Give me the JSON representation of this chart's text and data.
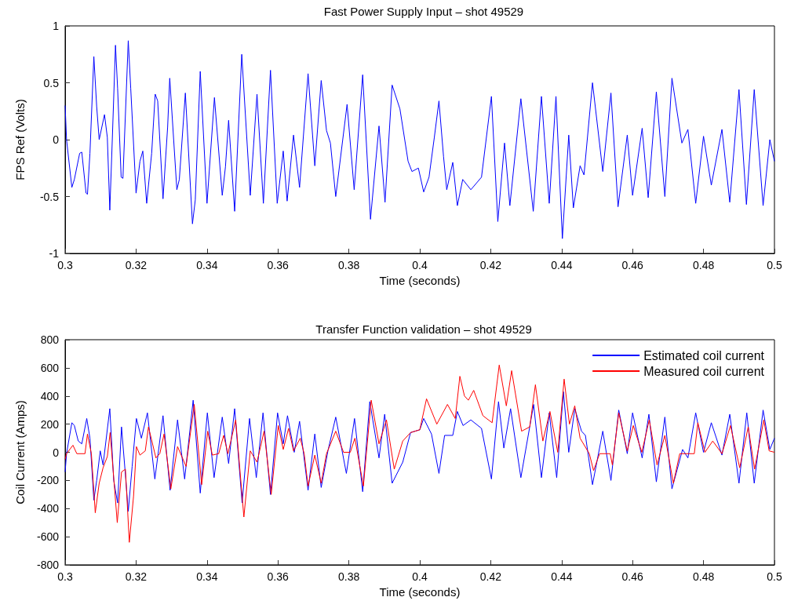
{
  "chart_data": [
    {
      "type": "line",
      "title": "Fast Power Supply Input – shot 49529",
      "xlabel": "Time (seconds)",
      "ylabel": "FPS Ref (Volts)",
      "xlim": [
        0.3,
        0.5
      ],
      "xticks": [
        0.3,
        0.32,
        0.34,
        0.36,
        0.38,
        0.4,
        0.42,
        0.44,
        0.46,
        0.48,
        0.5
      ],
      "ylim": [
        -1,
        1
      ],
      "yticks": [
        -1,
        -0.5,
        0,
        0.5,
        1
      ],
      "grid": false,
      "marker": "none",
      "line_style": "solid",
      "series": [
        {
          "color": "#0000ff",
          "x": [
            0.3,
            0.3004,
            0.3019,
            0.3026,
            0.3041,
            0.3047,
            0.3059,
            0.3063,
            0.307,
            0.3081,
            0.3089,
            0.3096,
            0.3111,
            0.3119,
            0.3126,
            0.3133,
            0.3142,
            0.3148,
            0.3158,
            0.3163,
            0.3178,
            0.3185,
            0.32,
            0.3211,
            0.3219,
            0.323,
            0.3244,
            0.3254,
            0.3261,
            0.3276,
            0.3289,
            0.3295,
            0.3315,
            0.3322,
            0.3339,
            0.3359,
            0.3367,
            0.3381,
            0.34,
            0.3421,
            0.3443,
            0.3452,
            0.3461,
            0.3478,
            0.3498,
            0.3522,
            0.3541,
            0.3559,
            0.3579,
            0.3598,
            0.3615,
            0.3626,
            0.3644,
            0.3661,
            0.3685,
            0.3704,
            0.3722,
            0.3737,
            0.3748,
            0.3763,
            0.3795,
            0.3815,
            0.3839,
            0.3861,
            0.3885,
            0.3902,
            0.3922,
            0.3944,
            0.3967,
            0.3978,
            0.3996,
            0.4011,
            0.4026,
            0.4041,
            0.4054,
            0.4067,
            0.4076,
            0.4093,
            0.4106,
            0.4121,
            0.4144,
            0.4174,
            0.4202,
            0.422,
            0.4239,
            0.4254,
            0.4285,
            0.432,
            0.4343,
            0.4365,
            0.4384,
            0.4402,
            0.442,
            0.4433,
            0.4452,
            0.4463,
            0.4487,
            0.4516,
            0.4539,
            0.4559,
            0.4585,
            0.46,
            0.4627,
            0.4644,
            0.4667,
            0.4691,
            0.4711,
            0.4739,
            0.4756,
            0.4778,
            0.48,
            0.4822,
            0.4852,
            0.4874,
            0.49,
            0.4921,
            0.4943,
            0.4968,
            0.4987,
            0.5
          ],
          "values": [
            0.3,
            0.0,
            -0.42,
            -0.35,
            -0.12,
            -0.11,
            -0.47,
            -0.48,
            -0.12,
            0.73,
            0.29,
            0.0,
            0.22,
            0.02,
            -0.62,
            0.0,
            0.83,
            0.45,
            -0.33,
            -0.34,
            0.87,
            0.45,
            -0.47,
            -0.19,
            -0.1,
            -0.56,
            -0.12,
            0.4,
            0.34,
            -0.52,
            0.11,
            0.54,
            -0.44,
            -0.35,
            0.41,
            -0.74,
            -0.53,
            0.6,
            -0.56,
            0.37,
            -0.49,
            -0.24,
            0.17,
            -0.63,
            0.75,
            -0.49,
            0.4,
            -0.56,
            0.61,
            -0.56,
            -0.1,
            -0.54,
            0.04,
            -0.42,
            0.58,
            -0.23,
            0.52,
            0.08,
            -0.03,
            -0.5,
            0.31,
            -0.44,
            0.57,
            -0.7,
            0.12,
            -0.55,
            0.48,
            0.27,
            -0.19,
            -0.28,
            -0.25,
            -0.46,
            -0.33,
            0.02,
            0.34,
            -0.15,
            -0.44,
            -0.2,
            -0.58,
            -0.35,
            -0.44,
            -0.33,
            0.38,
            -0.72,
            -0.03,
            -0.58,
            0.36,
            -0.63,
            0.38,
            -0.56,
            0.38,
            -0.87,
            0.04,
            -0.6,
            -0.23,
            -0.31,
            0.5,
            -0.28,
            0.41,
            -0.59,
            0.04,
            -0.49,
            0.1,
            -0.51,
            0.42,
            -0.5,
            0.54,
            -0.03,
            0.09,
            -0.56,
            0.03,
            -0.4,
            0.09,
            -0.55,
            0.44,
            -0.57,
            0.44,
            -0.58,
            0.0,
            -0.19
          ]
        }
      ]
    },
    {
      "type": "line",
      "title": "Transfer Function validation – shot 49529",
      "xlabel": "Time (seconds)",
      "ylabel": "Coil Current (Amps)",
      "xlim": [
        0.3,
        0.5
      ],
      "xticks": [
        0.3,
        0.32,
        0.34,
        0.36,
        0.38,
        0.4,
        0.42,
        0.44,
        0.46,
        0.48,
        0.5
      ],
      "ylim": [
        -800,
        800
      ],
      "yticks": [
        -800,
        -600,
        -400,
        -200,
        0,
        200,
        400,
        600,
        800
      ],
      "grid": false,
      "legend": "top right",
      "marker": "none",
      "line_style": "solid",
      "series": [
        {
          "name": "Estimated coil current",
          "color": "#0000ff",
          "x": [
            0.3,
            0.3004,
            0.3019,
            0.3026,
            0.3037,
            0.3047,
            0.3061,
            0.307,
            0.3081,
            0.3089,
            0.3099,
            0.3107,
            0.3126,
            0.3137,
            0.3148,
            0.3159,
            0.317,
            0.3178,
            0.3189,
            0.3201,
            0.3215,
            0.3232,
            0.3253,
            0.3276,
            0.3296,
            0.3317,
            0.3337,
            0.3361,
            0.3381,
            0.3401,
            0.342,
            0.3443,
            0.3461,
            0.3478,
            0.3499,
            0.352,
            0.3539,
            0.3558,
            0.3579,
            0.3599,
            0.3615,
            0.3627,
            0.3646,
            0.3661,
            0.3685,
            0.3704,
            0.3722,
            0.3741,
            0.3763,
            0.3793,
            0.3816,
            0.3839,
            0.3859,
            0.3885,
            0.3901,
            0.3922,
            0.3952,
            0.3974,
            0.4,
            0.4011,
            0.4033,
            0.4054,
            0.407,
            0.4093,
            0.4106,
            0.4122,
            0.4144,
            0.4174,
            0.4202,
            0.4222,
            0.4237,
            0.4256,
            0.4285,
            0.4321,
            0.4343,
            0.4365,
            0.4386,
            0.4405,
            0.442,
            0.4437,
            0.4456,
            0.4467,
            0.4487,
            0.4516,
            0.4539,
            0.4561,
            0.4585,
            0.46,
            0.4627,
            0.4646,
            0.4667,
            0.4691,
            0.4711,
            0.4741,
            0.4756,
            0.4778,
            0.48,
            0.4822,
            0.4852,
            0.4874,
            0.49,
            0.4922,
            0.4943,
            0.4968,
            0.4987,
            0.5
          ],
          "values": [
            -140,
            -10,
            210,
            190,
            80,
            60,
            240,
            100,
            -340,
            -200,
            10,
            -90,
            310,
            -200,
            -360,
            180,
            -160,
            -420,
            -100,
            240,
            100,
            280,
            -190,
            260,
            -270,
            230,
            -190,
            370,
            -290,
            280,
            -180,
            250,
            -80,
            310,
            -360,
            240,
            -180,
            280,
            -300,
            280,
            60,
            260,
            0,
            220,
            -270,
            130,
            -250,
            10,
            250,
            -150,
            240,
            -280,
            360,
            -40,
            270,
            -220,
            -70,
            140,
            160,
            240,
            130,
            -150,
            120,
            120,
            290,
            190,
            230,
            170,
            -190,
            360,
            30,
            310,
            -180,
            340,
            -180,
            280,
            -180,
            430,
            0,
            310,
            150,
            120,
            -230,
            150,
            -200,
            300,
            -10,
            280,
            -40,
            270,
            -210,
            250,
            -260,
            20,
            -40,
            280,
            0,
            210,
            -20,
            270,
            -220,
            280,
            -220,
            300,
            20,
            100
          ]
        },
        {
          "name": "Measured coil current",
          "color": "#ff0000",
          "x": [
            0.3,
            0.3004,
            0.3022,
            0.3033,
            0.3056,
            0.3063,
            0.3074,
            0.3085,
            0.3096,
            0.3107,
            0.3119,
            0.3127,
            0.3147,
            0.3159,
            0.317,
            0.3181,
            0.3193,
            0.3201,
            0.3211,
            0.3226,
            0.3235,
            0.3256,
            0.3267,
            0.3279,
            0.3298,
            0.3317,
            0.3341,
            0.3364,
            0.3385,
            0.3402,
            0.3415,
            0.3433,
            0.3447,
            0.3459,
            0.3481,
            0.3504,
            0.3522,
            0.3541,
            0.3561,
            0.3581,
            0.3601,
            0.3615,
            0.363,
            0.3644,
            0.3663,
            0.3674,
            0.3685,
            0.3704,
            0.3722,
            0.3737,
            0.3763,
            0.3785,
            0.3804,
            0.3817,
            0.3841,
            0.3863,
            0.3885,
            0.3906,
            0.3928,
            0.3952,
            0.3974,
            0.4,
            0.4019,
            0.4048,
            0.4078,
            0.41,
            0.4113,
            0.4126,
            0.4137,
            0.4152,
            0.4178,
            0.4204,
            0.4224,
            0.4244,
            0.4259,
            0.4287,
            0.431,
            0.4326,
            0.4347,
            0.4367,
            0.4389,
            0.4407,
            0.4422,
            0.4437,
            0.4452,
            0.4478,
            0.449,
            0.4507,
            0.4537,
            0.4543,
            0.4561,
            0.4585,
            0.4602,
            0.4626,
            0.4647,
            0.4669,
            0.4691,
            0.4715,
            0.4733,
            0.4774,
            0.4784,
            0.4804,
            0.4826,
            0.4852,
            0.4876,
            0.4902,
            0.4926,
            0.4944,
            0.497,
            0.4985,
            0.5
          ],
          "values": [
            -50,
            -10,
            50,
            -10,
            -10,
            130,
            -10,
            -430,
            -220,
            -110,
            -30,
            140,
            -500,
            -140,
            -120,
            -640,
            -310,
            40,
            -20,
            10,
            180,
            -40,
            -10,
            130,
            -260,
            40,
            -100,
            340,
            -230,
            150,
            -20,
            -10,
            120,
            -10,
            230,
            -460,
            10,
            -70,
            150,
            -300,
            190,
            20,
            170,
            10,
            100,
            -10,
            -240,
            -20,
            -220,
            -10,
            150,
            0,
            0,
            100,
            -240,
            370,
            60,
            230,
            -120,
            80,
            140,
            160,
            380,
            200,
            340,
            240,
            540,
            400,
            370,
            440,
            260,
            210,
            620,
            330,
            580,
            150,
            180,
            480,
            80,
            290,
            0,
            520,
            200,
            330,
            100,
            -10,
            -130,
            -10,
            -10,
            -90,
            280,
            10,
            190,
            0,
            230,
            -90,
            120,
            -220,
            -10,
            -10,
            210,
            0,
            80,
            -10,
            190,
            -110,
            180,
            -120,
            230,
            10,
            0
          ]
        }
      ]
    }
  ]
}
